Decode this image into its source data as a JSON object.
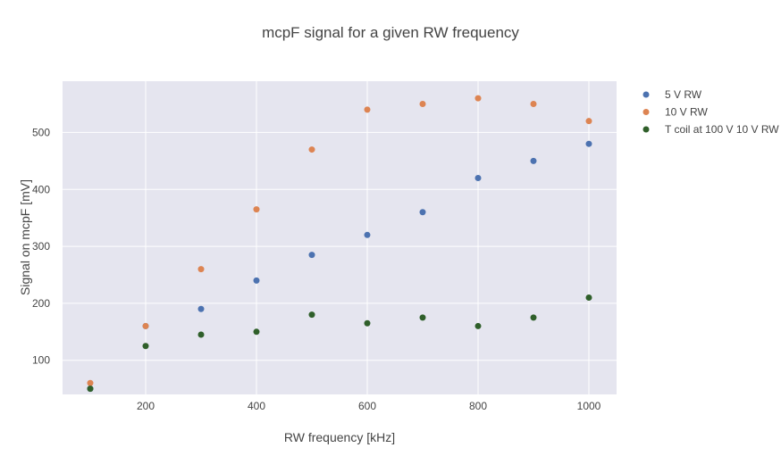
{
  "chart_data": {
    "type": "scatter",
    "title": "mcpF signal for a given RW frequency",
    "xlabel": "RW frequency [kHz]",
    "ylabel": "Signal on mcpF [mV]",
    "xlim": [
      50,
      1050
    ],
    "ylim": [
      40,
      590
    ],
    "x_ticks": [
      200,
      400,
      600,
      800,
      1000
    ],
    "y_ticks": [
      100,
      200,
      300,
      400,
      500
    ],
    "grid": true,
    "legend_position": "top-right",
    "background_color": "#e5e5ef",
    "series": [
      {
        "name": "5 V RW",
        "color": "#4c72b0",
        "x": [
          100,
          200,
          300,
          400,
          500,
          600,
          700,
          800,
          900,
          1000
        ],
        "y": [
          50,
          160,
          190,
          240,
          285,
          320,
          360,
          420,
          450,
          480
        ]
      },
      {
        "name": "10 V RW",
        "color": "#dd8452",
        "x": [
          100,
          200,
          300,
          400,
          500,
          600,
          700,
          800,
          900,
          1000
        ],
        "y": [
          60,
          160,
          260,
          365,
          470,
          540,
          550,
          560,
          550,
          520
        ]
      },
      {
        "name": "T coil at 100 V 10 V RW",
        "color": "#2f5f2a",
        "x": [
          100,
          200,
          300,
          400,
          500,
          600,
          700,
          800,
          900,
          1000
        ],
        "y": [
          50,
          125,
          145,
          150,
          180,
          165,
          175,
          160,
          175,
          210
        ]
      }
    ]
  }
}
